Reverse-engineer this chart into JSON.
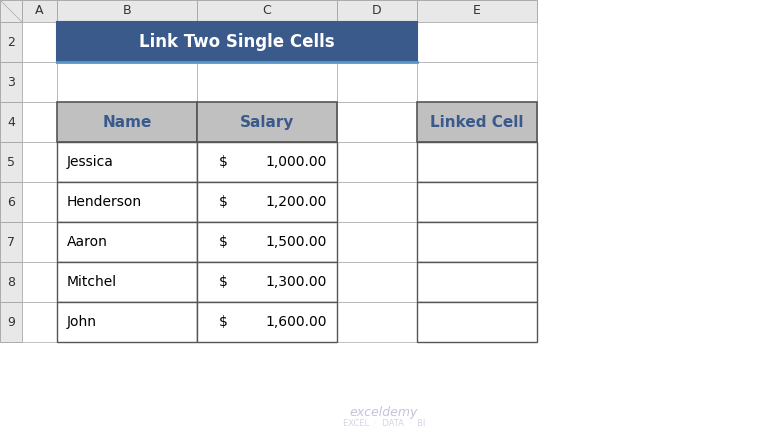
{
  "title": "Link Two Single Cells",
  "title_bg": "#3A5A8C",
  "title_fg": "#FFFFFF",
  "header_bg": "#C0C0C0",
  "header_fg": "#3A5A8C",
  "col_headers": [
    "A",
    "B",
    "C",
    "D",
    "E"
  ],
  "row_numbers": [
    "2",
    "3",
    "4",
    "5",
    "6",
    "7",
    "8",
    "9"
  ],
  "names": [
    "Jessica",
    "Henderson",
    "Aaron",
    "Mitchel",
    "John"
  ],
  "salary_dollar": [
    "$",
    "$",
    "$",
    "$",
    "$"
  ],
  "salary_amount": [
    "1,000.00",
    "1,200.00",
    "1,500.00",
    "1,300.00",
    "1,600.00"
  ],
  "table_header_name": "Name",
  "table_header_salary": "Salary",
  "linked_cell_header": "Linked Cell",
  "bg_color": "#FFFFFF",
  "grid_color": "#AAAAAA",
  "border_color": "#555555",
  "col_header_bg": "#E8E8E8",
  "watermark_color": "#AAAACC",
  "watermark_text1": "exceldemy",
  "watermark_text2": "EXCEL  ·  DATA  ·  BI"
}
